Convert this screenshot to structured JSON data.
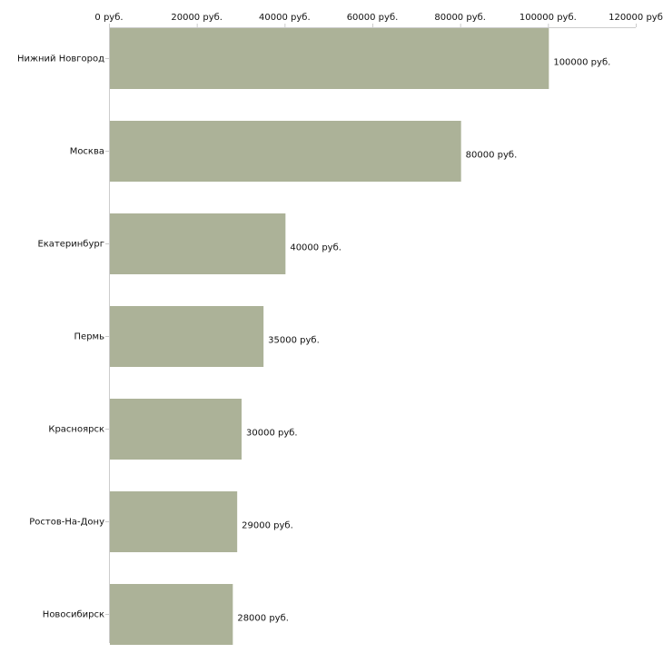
{
  "chart_data": {
    "type": "bar",
    "orientation": "horizontal",
    "title": "",
    "xlabel": "",
    "ylabel": "",
    "unit_suffix": " руб.",
    "categories": [
      "Нижний Новгород",
      "Москва",
      "Екатеринбург",
      "Пермь",
      "Красноярск",
      "Ростов-На-Дону",
      "Новосибирск"
    ],
    "values": [
      100000,
      80000,
      40000,
      35000,
      30000,
      29000,
      28000
    ],
    "value_labels": [
      "100000 руб.",
      "80000 руб.",
      "40000 руб.",
      "35000 руб.",
      "30000 руб.",
      "29000 руб.",
      "28000 руб."
    ],
    "xlim": [
      0,
      120000
    ],
    "ticks": [
      0,
      20000,
      40000,
      60000,
      80000,
      100000,
      120000
    ],
    "tick_labels": [
      "0 руб.",
      "20000 руб.",
      "40000 руб.",
      "60000 руб.",
      "80000 руб.",
      "100000 руб.",
      "120000 руб"
    ],
    "grid": false,
    "legend": "none",
    "colors": {
      "bar": "#acb298",
      "axis": "#cccccc",
      "text": "#111111"
    }
  }
}
